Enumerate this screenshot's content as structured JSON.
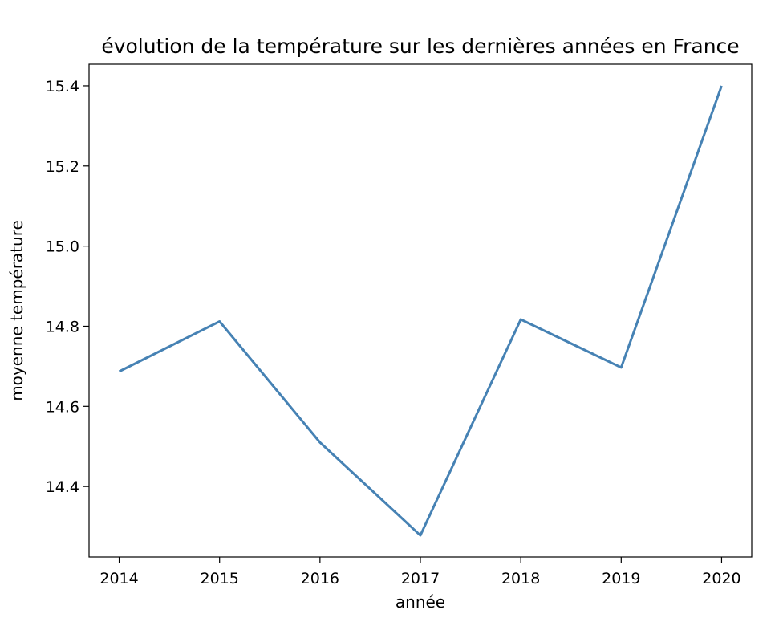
{
  "chart_data": {
    "type": "line",
    "title": "évolution de la température sur les dernières années en France",
    "xlabel": "année",
    "ylabel": "moyenne température",
    "x": [
      2014,
      2015,
      2016,
      2017,
      2018,
      2019,
      2020
    ],
    "x_ticks": [
      "2014",
      "2015",
      "2016",
      "2017",
      "2018",
      "2019",
      "2020"
    ],
    "y_ticks": [
      "14.4",
      "14.6",
      "14.8",
      "15.0",
      "15.2",
      "15.4"
    ],
    "xlim": [
      2013.7,
      2020.3
    ],
    "ylim": [
      14.224,
      15.454
    ],
    "grid": false,
    "series": [
      {
        "values": [
          14.687,
          14.812,
          14.51,
          14.278,
          14.817,
          14.697,
          15.4
        ],
        "color": "#4682b4"
      }
    ]
  }
}
